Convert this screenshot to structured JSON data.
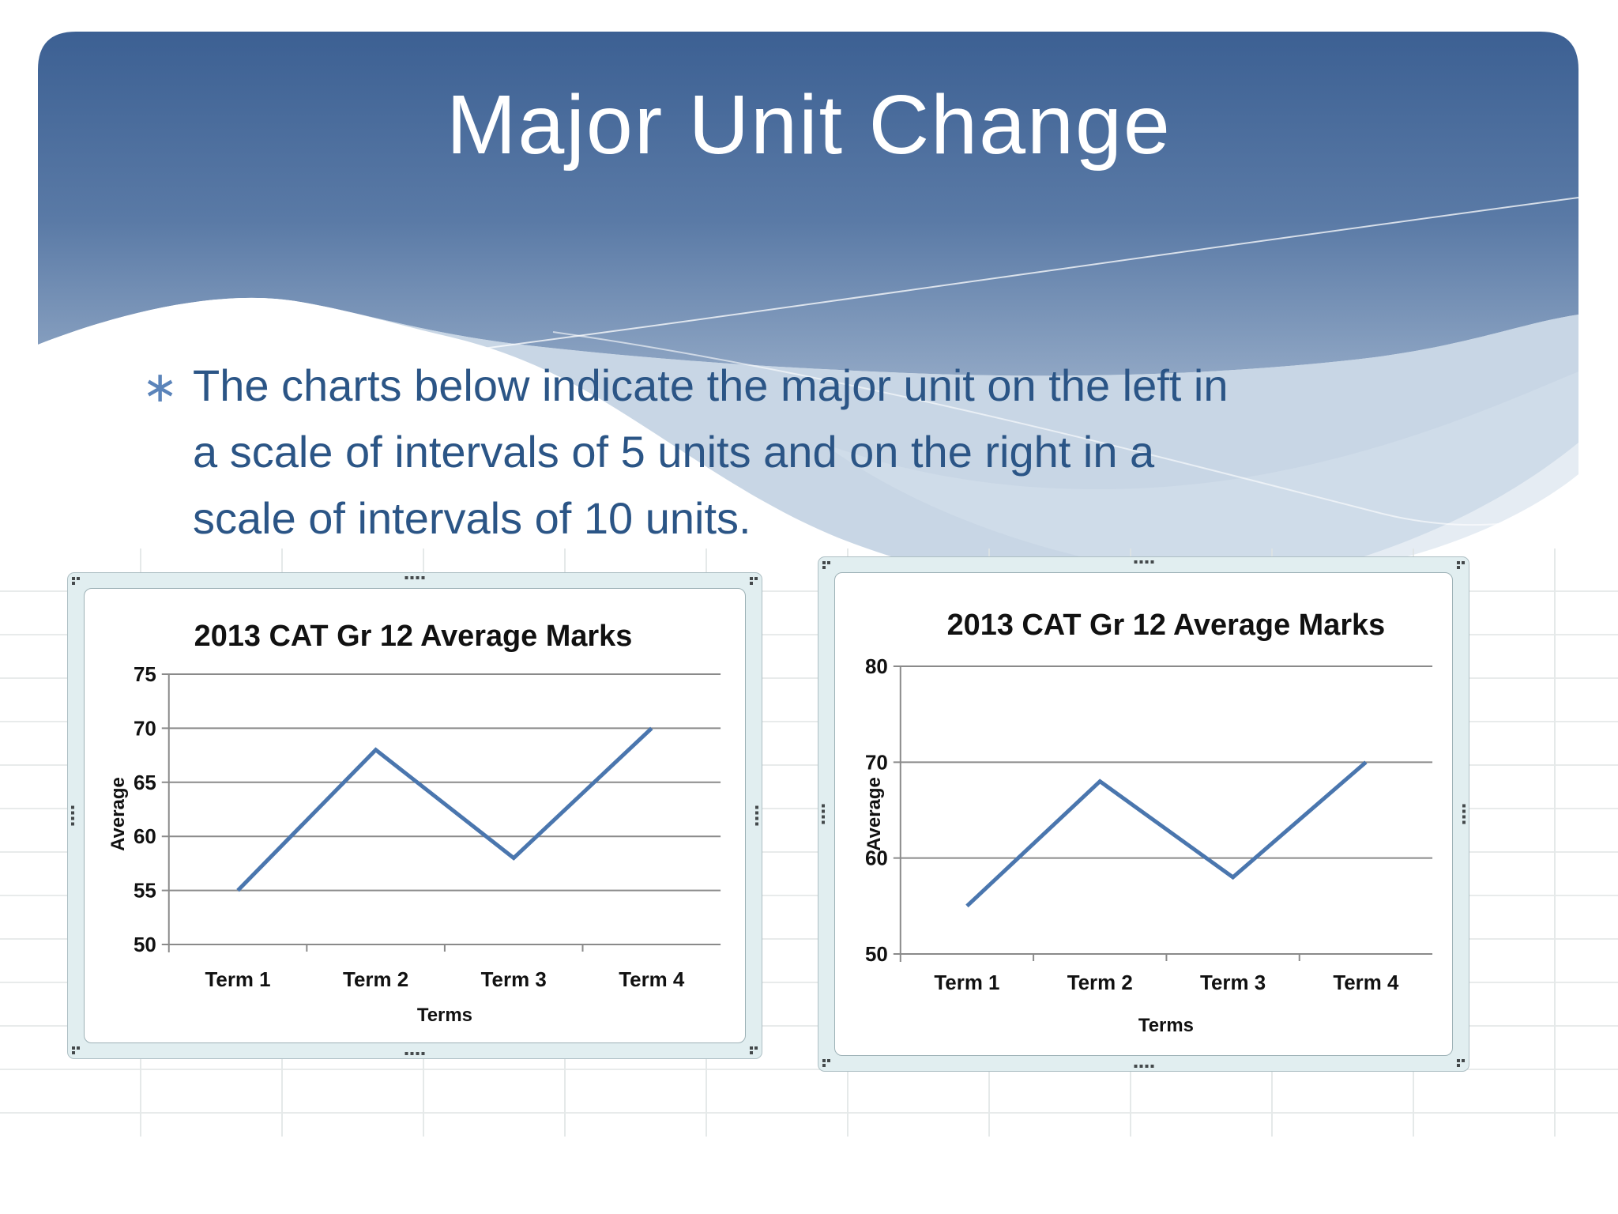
{
  "slide": {
    "title": "Major Unit Change",
    "bullet_symbol": "∗",
    "body_lines": [
      "The charts below indicate the major unit on the left in",
      "a scale of intervals of 5 units and on the right in a",
      "scale of intervals of 10 units."
    ]
  },
  "colors": {
    "band_top": "#3c6093",
    "band_mid": "#5a7aa6",
    "band_bottom": "#8fa6c4",
    "wave_light": "#b3c6db",
    "wave_lighter": "#d4dfeb",
    "title_text": "#ffffff",
    "body_text": "#2b5586",
    "bullet": "#5b84ba",
    "chart_line": "#4a76ae",
    "chart_grid": "#8a8a8a",
    "chart_text": "#111111",
    "frame_bg": "#e1eef0",
    "frame_border": "#aebfc4"
  },
  "chart_data": [
    {
      "type": "line",
      "title": "2013 CAT Gr 12 Average Marks",
      "categories": [
        "Term 1",
        "Term 2",
        "Term 3",
        "Term 4"
      ],
      "values": [
        55,
        68,
        58,
        70
      ],
      "xlabel": "Terms",
      "ylabel": "Average",
      "ylim": [
        50,
        75
      ],
      "major_unit": 5,
      "yticks": [
        50,
        55,
        60,
        65,
        70,
        75
      ],
      "legend": "none",
      "grid": "horizontal"
    },
    {
      "type": "line",
      "title": "2013 CAT Gr 12 Average Marks",
      "categories": [
        "Term 1",
        "Term 2",
        "Term 3",
        "Term 4"
      ],
      "values": [
        55,
        68,
        58,
        70
      ],
      "xlabel": "Terms",
      "ylabel": "Average",
      "ylim": [
        50,
        80
      ],
      "major_unit": 10,
      "yticks": [
        50,
        60,
        70,
        80
      ],
      "legend": "none",
      "grid": "horizontal"
    }
  ]
}
